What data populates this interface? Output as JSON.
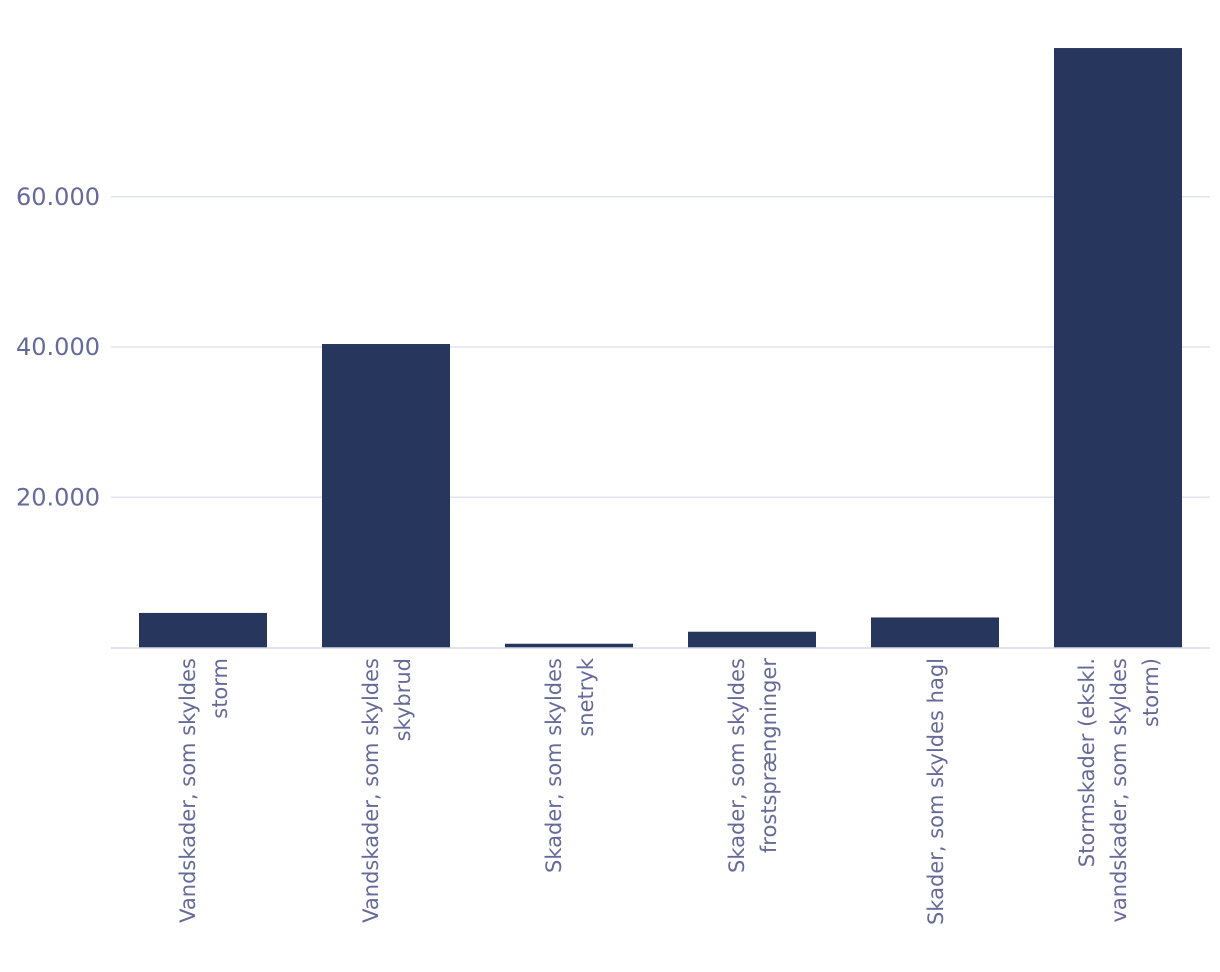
{
  "chart_data": {
    "type": "bar",
    "categories": [
      [
        "Vandskader, som skyldes",
        "storm"
      ],
      [
        "Vandskader, som skyldes",
        "skybrud"
      ],
      [
        "Skader, som skyldes",
        "snetryk"
      ],
      [
        "Skader, som skyldes",
        "frostsprængninger"
      ],
      [
        "Skader, som skyldes hagl"
      ],
      [
        "Stormskader (ekskl.",
        "vandskader, som skyldes",
        "storm)"
      ]
    ],
    "values": [
      4600,
      40400,
      500,
      2100,
      4000,
      79800
    ],
    "ylim": [
      0,
      80000
    ],
    "yticks": [
      20000,
      40000,
      60000
    ],
    "ytick_labels": [
      "20.000",
      "40.000",
      "60.000"
    ],
    "grid": true,
    "colors": {
      "bar": "#27365c",
      "grid": "#e2e3f1",
      "axis": "#d6d8ea",
      "text": "#666a9a"
    }
  }
}
